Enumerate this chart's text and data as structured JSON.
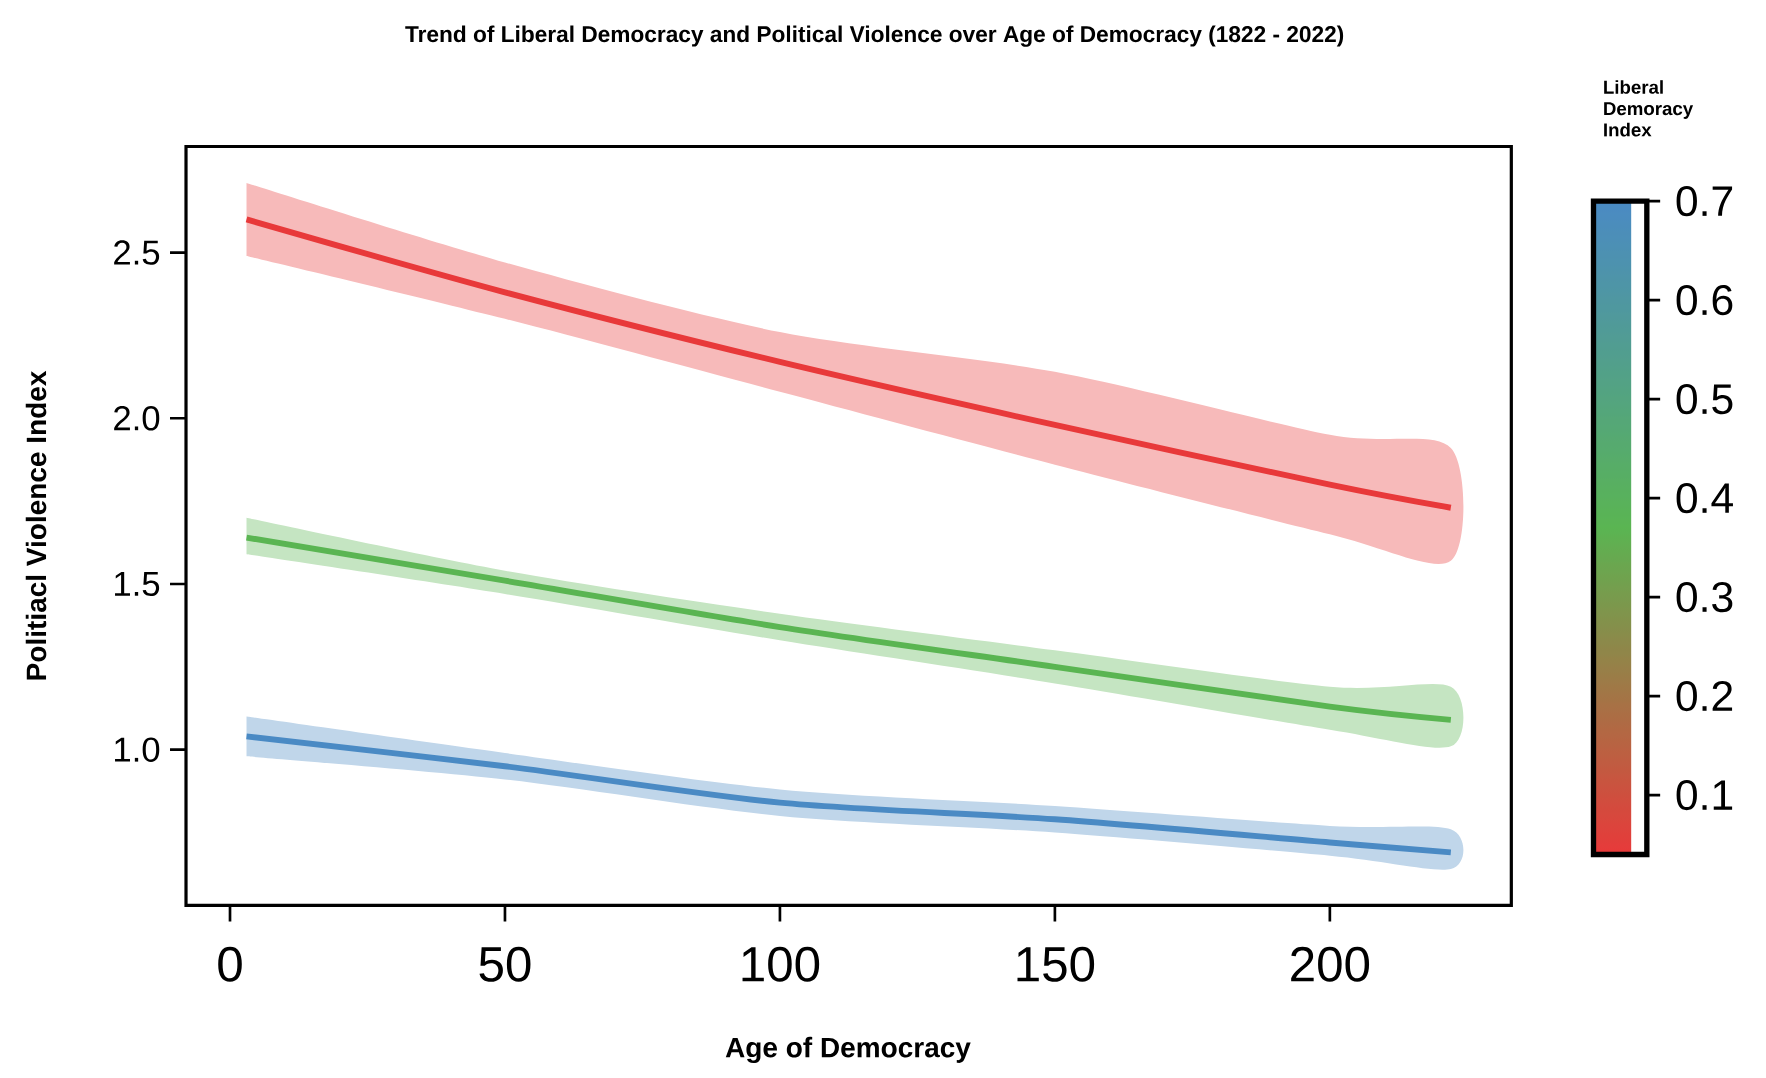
{
  "chart_data": {
    "type": "line",
    "title": "Trend of Liberal Democracy and Political Violence over Age of Democracy (1822 - 2022)",
    "xlabel": "Age of Democracy",
    "ylabel": "Politiacl Violence Index",
    "clabel": "Liberal Demoracy Index",
    "marker": "none",
    "x": [
      3,
      50,
      100,
      150,
      200,
      222
    ],
    "xlim": [
      -8,
      233
    ],
    "ylim": [
      0.53,
      2.82
    ],
    "xticks": [
      0,
      50,
      100,
      150,
      200
    ],
    "yticks": [
      {
        "value": 1,
        "label": "1.0"
      },
      {
        "value": 1.5,
        "label": "1.5"
      },
      {
        "value": 2,
        "label": "2.0"
      },
      {
        "value": 2.5,
        "label": "2.5"
      }
    ],
    "clim": [
      0.04,
      0.7
    ],
    "cticks": [
      0.1,
      0.2,
      0.3,
      0.4,
      0.5,
      0.6,
      0.7
    ],
    "series": [
      {
        "color": "#e8393a",
        "values": [
          2.6,
          2.38,
          2.17,
          1.98,
          1.8,
          1.73
        ],
        "lower": [
          2.49,
          2.3,
          2.08,
          1.86,
          1.65,
          1.57
        ],
        "upper": [
          2.71,
          2.47,
          2.26,
          2.14,
          1.95,
          1.91
        ]
      },
      {
        "color": "#5ab552",
        "values": [
          1.64,
          1.51,
          1.37,
          1.25,
          1.13,
          1.09
        ],
        "lower": [
          1.59,
          1.47,
          1.33,
          1.2,
          1.06,
          1.01
        ],
        "upper": [
          1.7,
          1.54,
          1.41,
          1.3,
          1.19,
          1.19
        ]
      },
      {
        "color": "#4a8ac4",
        "values": [
          1.04,
          0.95,
          0.84,
          0.79,
          0.72,
          0.69
        ],
        "lower": [
          0.98,
          0.91,
          0.8,
          0.75,
          0.68,
          0.64
        ],
        "upper": [
          1.1,
          0.99,
          0.88,
          0.83,
          0.77,
          0.76
        ]
      }
    ]
  }
}
